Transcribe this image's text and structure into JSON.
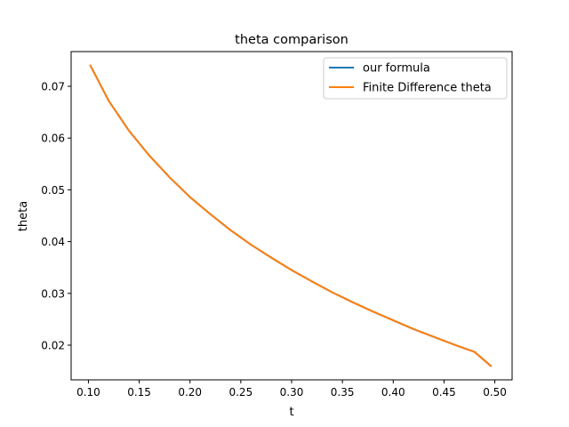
{
  "chart_data": {
    "type": "line",
    "title": "theta comparison",
    "xlabel": "t",
    "ylabel": "theta",
    "xlim": [
      0.083,
      0.517
    ],
    "ylim": [
      0.0133,
      0.0767
    ],
    "xticks": [
      0.1,
      0.15,
      0.2,
      0.25,
      0.3,
      0.35,
      0.4,
      0.45,
      0.5
    ],
    "xtick_labels": [
      "0.10",
      "0.15",
      "0.20",
      "0.25",
      "0.30",
      "0.35",
      "0.40",
      "0.45",
      "0.50"
    ],
    "yticks": [
      0.02,
      0.03,
      0.04,
      0.05,
      0.06,
      0.07
    ],
    "ytick_labels": [
      "0.02",
      "0.03",
      "0.04",
      "0.05",
      "0.06",
      "0.07"
    ],
    "grid": false,
    "legend_position": "top-right",
    "series": [
      {
        "name": "our formula",
        "color": "#1f77b4",
        "x": [
          0.102,
          0.12,
          0.14,
          0.16,
          0.18,
          0.2,
          0.22,
          0.24,
          0.26,
          0.28,
          0.3,
          0.32,
          0.34,
          0.36,
          0.38,
          0.4,
          0.42,
          0.44,
          0.46,
          0.48,
          0.496
        ],
        "y": [
          0.074,
          0.0672,
          0.0614,
          0.0566,
          0.0524,
          0.0486,
          0.0453,
          0.0422,
          0.0394,
          0.0369,
          0.0345,
          0.0323,
          0.0302,
          0.0283,
          0.0265,
          0.0248,
          0.0231,
          0.0216,
          0.0201,
          0.0187,
          0.016
        ]
      },
      {
        "name": "Finite Difference theta",
        "color": "#ff7f0e",
        "x": [
          0.102,
          0.12,
          0.14,
          0.16,
          0.18,
          0.2,
          0.22,
          0.24,
          0.26,
          0.28,
          0.3,
          0.32,
          0.34,
          0.36,
          0.38,
          0.4,
          0.42,
          0.44,
          0.46,
          0.48,
          0.496
        ],
        "y": [
          0.074,
          0.0672,
          0.0614,
          0.0566,
          0.0524,
          0.0486,
          0.0453,
          0.0422,
          0.0394,
          0.0369,
          0.0345,
          0.0323,
          0.0302,
          0.0283,
          0.0265,
          0.0248,
          0.0231,
          0.0216,
          0.0201,
          0.0187,
          0.016
        ]
      }
    ]
  }
}
